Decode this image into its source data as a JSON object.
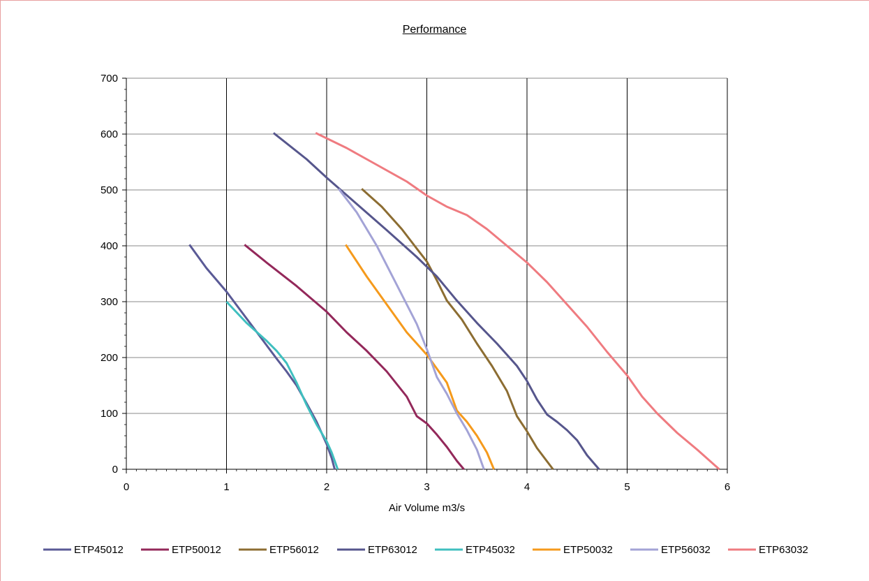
{
  "chart_data": {
    "type": "line",
    "title": "Performance",
    "xlabel": "Air Volume m3/s",
    "ylabel": "",
    "xlim": [
      0,
      6
    ],
    "ylim": [
      0,
      700
    ],
    "x_ticks": [
      0,
      1,
      2,
      3,
      4,
      5,
      6
    ],
    "y_ticks": [
      0,
      100,
      200,
      300,
      400,
      500,
      600,
      700
    ],
    "grid": {
      "x_major": true,
      "y_major": true
    },
    "legend_position": "bottom",
    "series": [
      {
        "name": "ETP45012",
        "color": "#5a5a96",
        "points": [
          [
            0.63,
            402
          ],
          [
            0.8,
            360
          ],
          [
            1.0,
            318
          ],
          [
            1.2,
            270
          ],
          [
            1.4,
            222
          ],
          [
            1.5,
            198
          ],
          [
            1.6,
            175
          ],
          [
            1.7,
            150
          ],
          [
            1.8,
            118
          ],
          [
            1.9,
            85
          ],
          [
            2.0,
            45
          ],
          [
            2.05,
            20
          ],
          [
            2.08,
            0
          ]
        ]
      },
      {
        "name": "ETP50012",
        "color": "#93285a",
        "points": [
          [
            1.18,
            402
          ],
          [
            1.4,
            370
          ],
          [
            1.7,
            328
          ],
          [
            2.0,
            282
          ],
          [
            2.2,
            245
          ],
          [
            2.4,
            212
          ],
          [
            2.6,
            175
          ],
          [
            2.8,
            130
          ],
          [
            2.9,
            95
          ],
          [
            3.0,
            82
          ],
          [
            3.1,
            62
          ],
          [
            3.2,
            40
          ],
          [
            3.3,
            15
          ],
          [
            3.37,
            0
          ]
        ]
      },
      {
        "name": "ETP56012",
        "color": "#8c6d32",
        "points": [
          [
            2.35,
            502
          ],
          [
            2.55,
            470
          ],
          [
            2.75,
            430
          ],
          [
            2.9,
            395
          ],
          [
            3.0,
            372
          ],
          [
            3.1,
            338
          ],
          [
            3.2,
            302
          ],
          [
            3.35,
            268
          ],
          [
            3.5,
            225
          ],
          [
            3.65,
            185
          ],
          [
            3.8,
            140
          ],
          [
            3.9,
            95
          ],
          [
            4.0,
            68
          ],
          [
            4.1,
            38
          ],
          [
            4.26,
            0
          ]
        ]
      },
      {
        "name": "ETP63012",
        "color": "#56568c",
        "points": [
          [
            1.47,
            602
          ],
          [
            1.8,
            555
          ],
          [
            2.0,
            522
          ],
          [
            2.3,
            475
          ],
          [
            2.6,
            428
          ],
          [
            2.9,
            380
          ],
          [
            3.1,
            345
          ],
          [
            3.3,
            302
          ],
          [
            3.5,
            262
          ],
          [
            3.7,
            225
          ],
          [
            3.9,
            185
          ],
          [
            4.0,
            158
          ],
          [
            4.1,
            125
          ],
          [
            4.2,
            98
          ],
          [
            4.3,
            85
          ],
          [
            4.4,
            70
          ],
          [
            4.5,
            52
          ],
          [
            4.6,
            25
          ],
          [
            4.72,
            0
          ]
        ]
      },
      {
        "name": "ETP45032",
        "color": "#3fbfbf",
        "points": [
          [
            1.0,
            300
          ],
          [
            1.2,
            262
          ],
          [
            1.4,
            230
          ],
          [
            1.5,
            212
          ],
          [
            1.6,
            190
          ],
          [
            1.7,
            155
          ],
          [
            1.8,
            115
          ],
          [
            1.9,
            80
          ],
          [
            2.0,
            50
          ],
          [
            2.05,
            30
          ],
          [
            2.1,
            5
          ],
          [
            2.11,
            0
          ]
        ]
      },
      {
        "name": "ETP50032",
        "color": "#f59a1c",
        "points": [
          [
            2.19,
            402
          ],
          [
            2.4,
            345
          ],
          [
            2.6,
            295
          ],
          [
            2.8,
            245
          ],
          [
            3.0,
            205
          ],
          [
            3.1,
            180
          ],
          [
            3.2,
            155
          ],
          [
            3.3,
            105
          ],
          [
            3.4,
            85
          ],
          [
            3.5,
            60
          ],
          [
            3.6,
            30
          ],
          [
            3.67,
            0
          ]
        ]
      },
      {
        "name": "ETP56032",
        "color": "#a3a3d6",
        "points": [
          [
            2.12,
            502
          ],
          [
            2.3,
            460
          ],
          [
            2.5,
            400
          ],
          [
            2.7,
            330
          ],
          [
            2.9,
            260
          ],
          [
            3.0,
            215
          ],
          [
            3.1,
            165
          ],
          [
            3.2,
            135
          ],
          [
            3.3,
            100
          ],
          [
            3.4,
            70
          ],
          [
            3.5,
            35
          ],
          [
            3.57,
            0
          ]
        ]
      },
      {
        "name": "ETP63032",
        "color": "#ef7b80",
        "points": [
          [
            1.89,
            602
          ],
          [
            2.2,
            575
          ],
          [
            2.5,
            545
          ],
          [
            2.8,
            515
          ],
          [
            3.0,
            490
          ],
          [
            3.2,
            470
          ],
          [
            3.4,
            455
          ],
          [
            3.6,
            430
          ],
          [
            3.8,
            400
          ],
          [
            4.0,
            370
          ],
          [
            4.2,
            335
          ],
          [
            4.4,
            295
          ],
          [
            4.6,
            255
          ],
          [
            4.8,
            210
          ],
          [
            5.0,
            168
          ],
          [
            5.15,
            130
          ],
          [
            5.3,
            100
          ],
          [
            5.5,
            65
          ],
          [
            5.7,
            35
          ],
          [
            5.92,
            0
          ]
        ]
      }
    ]
  }
}
